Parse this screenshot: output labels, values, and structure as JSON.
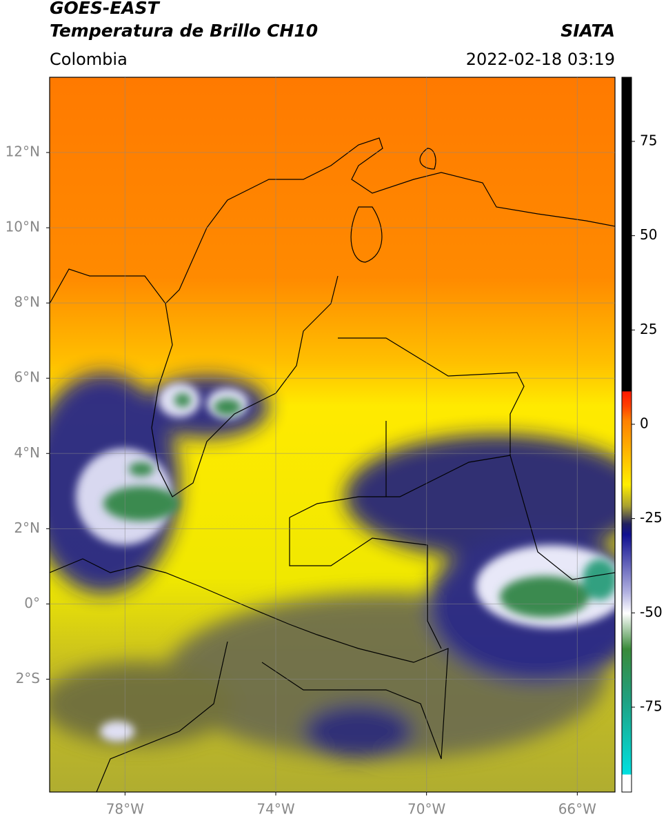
{
  "map": {
    "title": "GOES-EAST",
    "subtitle": "Temperatura de Brillo CH10",
    "source": "SIATA",
    "region": "Colombia",
    "datetime": "2022-02-18 03:19",
    "xlim": [
      -80,
      -65
    ],
    "ylim": [
      -5,
      14
    ],
    "xticks": [
      {
        "value": -78,
        "label": "78°W"
      },
      {
        "value": -74,
        "label": "74°W"
      },
      {
        "value": -70,
        "label": "70°W"
      },
      {
        "value": -66,
        "label": "66°W"
      }
    ],
    "yticks": [
      {
        "value": -2,
        "label": "2°S"
      },
      {
        "value": 0,
        "label": "0°"
      },
      {
        "value": 2,
        "label": "2°N"
      },
      {
        "value": 4,
        "label": "4°N"
      },
      {
        "value": 6,
        "label": "6°N"
      },
      {
        "value": 8,
        "label": "8°N"
      },
      {
        "value": 10,
        "label": "10°N"
      },
      {
        "value": 12,
        "label": "12°N"
      }
    ],
    "grid": true,
    "colorbar": {
      "lim": [
        -97.5,
        92
      ],
      "ticks": [
        -75,
        -50,
        -25,
        0,
        25,
        50,
        75
      ]
    }
  }
}
